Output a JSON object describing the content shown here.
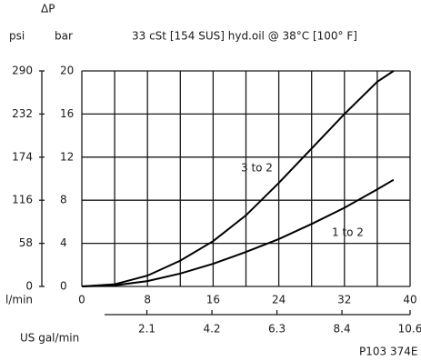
{
  "chart_data": {
    "type": "line",
    "title": "33 cSt [154 SUS] hyd.oil @ 38°C [100° F]",
    "y_label_symbol": "ΔP",
    "y2_label": "psi",
    "y_label": "bar",
    "x_label": "l/min",
    "x2_label": "US gal/min",
    "code": "P103 374E",
    "xlim": [
      0,
      40
    ],
    "xticks": [
      0,
      8,
      16,
      24,
      32,
      40
    ],
    "xgrid": [
      0,
      4,
      8,
      12,
      16,
      20,
      24,
      28,
      32,
      36,
      40
    ],
    "ylim": [
      0,
      20
    ],
    "yticks": [
      0,
      4,
      8,
      12,
      16,
      20
    ],
    "y2lim": [
      0,
      290
    ],
    "y2ticks": [
      0,
      58,
      116,
      174,
      232,
      290
    ],
    "x2lim": [
      0,
      10.6
    ],
    "x2ticks": [
      2.1,
      4.2,
      6.3,
      8.4,
      10.6
    ],
    "grid": true,
    "series": [
      {
        "name": "3 to 2",
        "color": "#000000",
        "x": [
          0,
          4,
          8,
          12,
          16,
          20,
          24,
          28,
          32,
          36,
          38
        ],
        "values": [
          0,
          0.2,
          1,
          2.4,
          4.2,
          6.6,
          9.6,
          12.8,
          16,
          19,
          20
        ]
      },
      {
        "name": "1 to 2",
        "color": "#000000",
        "x": [
          0,
          4,
          8,
          12,
          16,
          20,
          24,
          28,
          32,
          36,
          38
        ],
        "values": [
          0,
          0.1,
          0.5,
          1.2,
          2.1,
          3.2,
          4.4,
          5.8,
          7.3,
          9,
          9.9
        ]
      }
    ]
  }
}
